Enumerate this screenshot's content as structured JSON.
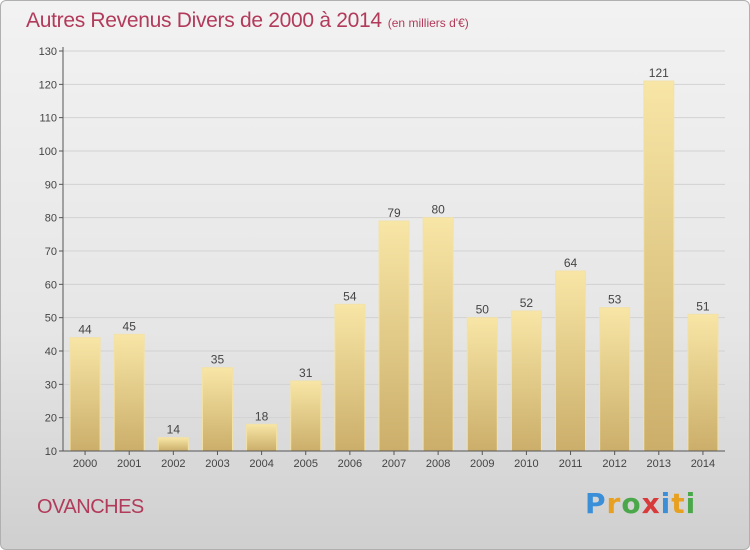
{
  "title": "Autres Revenus Divers de 2000 à 2014",
  "subtitle": "(en milliers d'€)",
  "location": "OVANCHES",
  "brand": {
    "letters": [
      "P",
      "r",
      "o",
      "x",
      "i",
      "t",
      "i"
    ],
    "colors": [
      "#3a8fd8",
      "#e8a020",
      "#4aa84a",
      "#d83a3a",
      "#3a8fd8",
      "#e8a020",
      "#4aa84a"
    ]
  },
  "colors": {
    "title": "#b23a5a",
    "bar_light": "#f7e3a0",
    "bar_dark": "#cfb16c",
    "axis": "#555555",
    "grid": "#cfcfcf"
  },
  "chart_data": {
    "type": "bar",
    "title": "Autres Revenus Divers de 2000 à 2014",
    "subtitle": "(en milliers d'€)",
    "xlabel": "",
    "ylabel": "",
    "ylim": [
      10,
      130
    ],
    "yticks": [
      10,
      20,
      30,
      40,
      50,
      60,
      70,
      80,
      90,
      100,
      110,
      120,
      130
    ],
    "grid": true,
    "categories": [
      "2000",
      "2001",
      "2002",
      "2003",
      "2004",
      "2005",
      "2006",
      "2007",
      "2008",
      "2009",
      "2010",
      "2011",
      "2012",
      "2013",
      "2014"
    ],
    "values": [
      44,
      45,
      14,
      35,
      18,
      31,
      54,
      79,
      80,
      50,
      52,
      64,
      53,
      121,
      51
    ]
  }
}
